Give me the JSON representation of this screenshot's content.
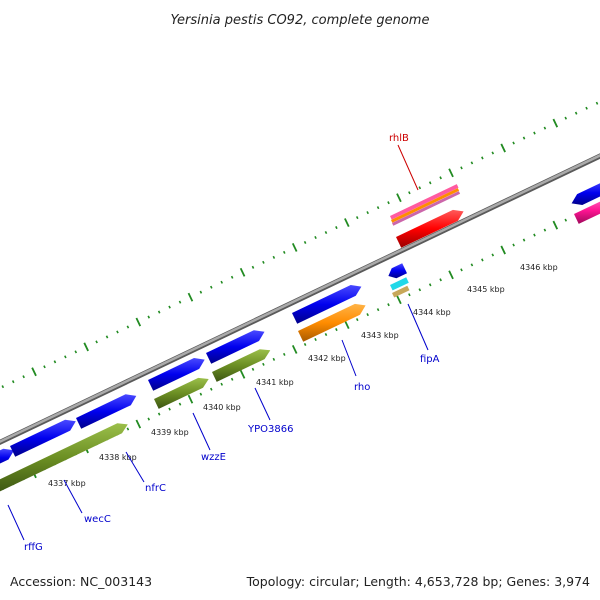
{
  "header": {
    "title": "Yersinia pestis CO92, complete genome"
  },
  "footer": {
    "accession": "Accession: NC_003143",
    "summary": "Topology: circular; Length: 4,653,728 bp; Genes: 3,974"
  },
  "map": {
    "colors": {
      "backbone": "#888888",
      "blue_gene": "#0000ee",
      "green_gene": "#6b8e23",
      "orange_gene": "#ff8c00",
      "red_gene": "#ff0000",
      "pink_gene": "#ff1493",
      "tick": "#228b22",
      "blue_label": "#0000cc",
      "red_label": "#cc0000"
    },
    "tick_labels": [
      "4337 kbp",
      "4338 kbp",
      "4339 kbp",
      "4340 kbp",
      "4341 kbp",
      "4342 kbp",
      "4343 kbp",
      "4344 kbp",
      "4345 kbp",
      "4346 kbp"
    ],
    "gene_labels": [
      {
        "id": "rffG",
        "text": "rffG",
        "color": "blue"
      },
      {
        "id": "wecC",
        "text": "wecC",
        "color": "blue"
      },
      {
        "id": "nfrC",
        "text": "nfrC",
        "color": "blue"
      },
      {
        "id": "wzzE",
        "text": "wzzE",
        "color": "blue"
      },
      {
        "id": "YPO3866",
        "text": "YPO3866",
        "color": "blue"
      },
      {
        "id": "rho",
        "text": "rho",
        "color": "blue"
      },
      {
        "id": "fipA",
        "text": "fipA",
        "color": "blue"
      },
      {
        "id": "rhlB",
        "text": "rhlB",
        "color": "red"
      }
    ]
  }
}
